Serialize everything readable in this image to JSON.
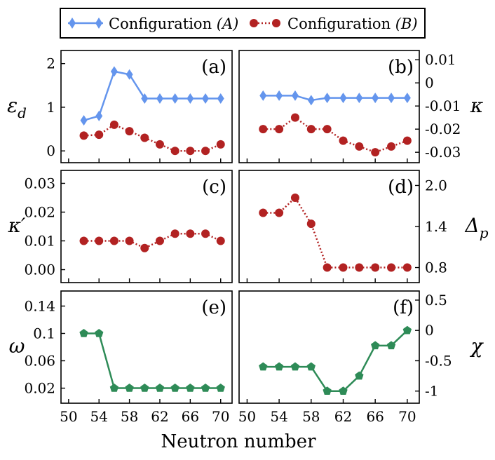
{
  "chart_data": {
    "type": "line",
    "xlabel": "Neutron number",
    "x": [
      52,
      54,
      56,
      58,
      60,
      62,
      64,
      66,
      68,
      70
    ],
    "xticks": [
      50,
      54,
      58,
      62,
      66,
      70
    ],
    "xticklabels": [
      "50",
      "54",
      "58",
      "62",
      "66",
      "70"
    ],
    "xlim": [
      49,
      71.5
    ],
    "legend": [
      {
        "label_main": "Configuration ",
        "label_sym": "(A)",
        "color": "#6495ed",
        "marker": "diamond",
        "line": "solid"
      },
      {
        "label_main": "Configuration ",
        "label_sym": "(B)",
        "color": "#b22222",
        "marker": "circle",
        "line": "dotted"
      }
    ],
    "panels": [
      {
        "id": "a",
        "label": "(a)",
        "ylabel": "ε",
        "ylabel_sub": "d",
        "yaxis_side": "left",
        "ylim": [
          -0.27,
          2.3
        ],
        "yticks": [
          0,
          1,
          2
        ],
        "yticklabels": [
          "0",
          "1",
          "2"
        ],
        "series": [
          {
            "name": "Configuration (A)",
            "color": "#6495ed",
            "marker": "diamond",
            "line": "solid",
            "values": [
              0.7,
              0.8,
              1.82,
              1.75,
              1.2,
              1.2,
              1.2,
              1.2,
              1.2,
              1.2
            ]
          },
          {
            "name": "Configuration (B)",
            "color": "#b22222",
            "marker": "circle",
            "line": "dotted",
            "values": [
              0.35,
              0.37,
              0.6,
              0.45,
              0.3,
              0.15,
              0.0,
              0.0,
              0.0,
              0.15
            ]
          }
        ]
      },
      {
        "id": "b",
        "label": "(b)",
        "ylabel": "κ",
        "ylabel_sub": "",
        "yaxis_side": "right",
        "ylim": [
          -0.0345,
          0.014
        ],
        "yticks": [
          0.01,
          0,
          -0.01,
          -0.02,
          -0.03
        ],
        "yticklabels": [
          "0.01",
          "0",
          "-0.01",
          "-0.02",
          "-0.03"
        ],
        "series": [
          {
            "name": "Configuration (A)",
            "color": "#6495ed",
            "marker": "diamond",
            "line": "solid",
            "values": [
              -0.0055,
              -0.0055,
              -0.0055,
              -0.0075,
              -0.0065,
              -0.0065,
              -0.0065,
              -0.0065,
              -0.0065,
              -0.0065
            ]
          },
          {
            "name": "Configuration (B)",
            "color": "#b22222",
            "marker": "circle",
            "line": "dotted",
            "values": [
              -0.02,
              -0.02,
              -0.015,
              -0.02,
              -0.02,
              -0.025,
              -0.0275,
              -0.03,
              -0.0275,
              -0.025
            ]
          }
        ]
      },
      {
        "id": "c",
        "label": "(c)",
        "ylabel": "κ′",
        "ylabel_sub": "",
        "yaxis_side": "left",
        "ylim": [
          -0.0045,
          0.0345
        ],
        "yticks": [
          0.03,
          0.02,
          0.01,
          0.0
        ],
        "yticklabels": [
          "0.03",
          "0.02",
          "0.01",
          "0.00"
        ],
        "series": [
          {
            "name": "Configuration (B)",
            "color": "#b22222",
            "marker": "circle",
            "line": "dotted",
            "values": [
              0.01,
              0.01,
              0.01,
              0.01,
              0.0075,
              0.01,
              0.0125,
              0.0125,
              0.0125,
              0.01
            ]
          }
        ]
      },
      {
        "id": "d",
        "label": "(d)",
        "ylabel": "Δ",
        "ylabel_sub": "p",
        "yaxis_side": "right",
        "ylim": [
          0.58,
          2.22
        ],
        "yticks": [
          2.0,
          1.4,
          0.8
        ],
        "yticklabels": [
          "2.0",
          "1.4",
          "0.8"
        ],
        "series": [
          {
            "name": "Configuration (B)",
            "color": "#b22222",
            "marker": "circle",
            "line": "dotted",
            "values": [
              1.6,
              1.6,
              1.82,
              1.44,
              0.8,
              0.8,
              0.8,
              0.8,
              0.8,
              0.8
            ]
          }
        ]
      },
      {
        "id": "e",
        "label": "(e)",
        "ylabel": "ω",
        "ylabel_sub": "",
        "yaxis_side": "left",
        "ylim": [
          -0.002,
          0.162
        ],
        "yticks": [
          0.14,
          0.1,
          0.06,
          0.02
        ],
        "yticklabels": [
          "0.14",
          "0.1",
          "0.06",
          "0.02"
        ],
        "series": [
          {
            "name": "",
            "color": "#2e8b57",
            "marker": "pentagon",
            "line": "solid",
            "values": [
              0.1,
              0.1,
              0.02,
              0.02,
              0.02,
              0.02,
              0.02,
              0.02,
              0.02,
              0.02
            ]
          }
        ]
      },
      {
        "id": "f",
        "label": "(f)",
        "ylabel": "χ",
        "ylabel_sub": "",
        "yaxis_side": "right",
        "ylim": [
          -1.2,
          0.65
        ],
        "yticks": [
          0.5,
          0,
          -0.5,
          -1
        ],
        "yticklabels": [
          "0.5",
          "0",
          "-0.5",
          "-1"
        ],
        "series": [
          {
            "name": "",
            "color": "#2e8b57",
            "marker": "pentagon",
            "line": "solid",
            "values": [
              -0.6,
              -0.6,
              -0.6,
              -0.6,
              -1.0,
              -1.0,
              -0.75,
              -0.25,
              -0.25,
              0.0
            ]
          }
        ]
      }
    ]
  }
}
